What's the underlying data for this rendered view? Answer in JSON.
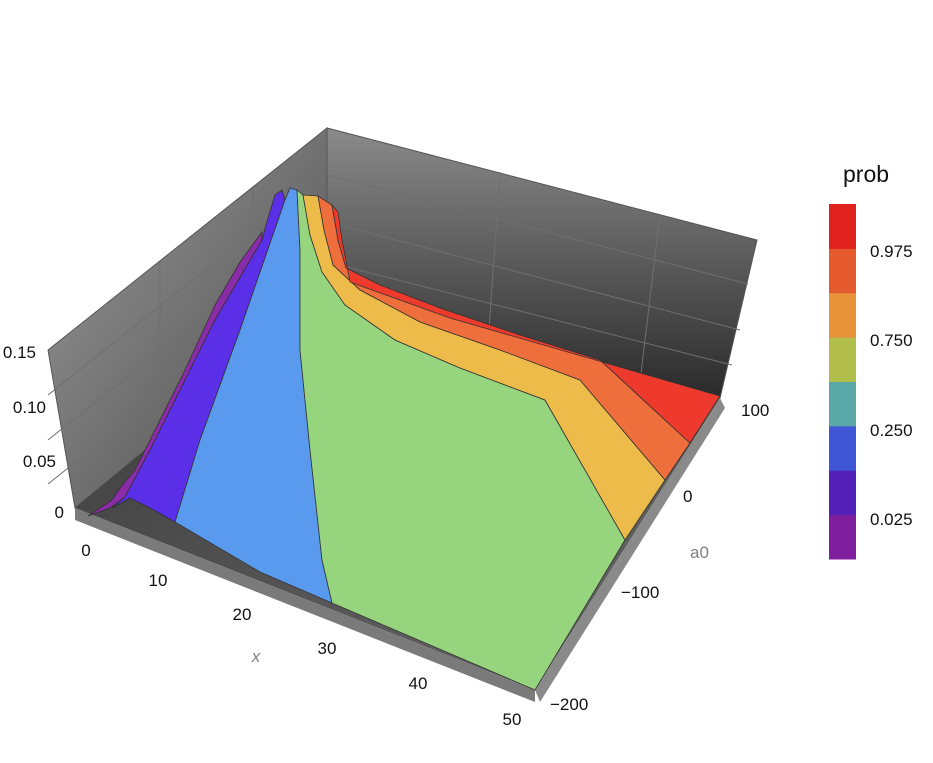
{
  "chart_data": {
    "type": "surface3d",
    "title": "",
    "axes": {
      "x": {
        "label": "x",
        "range": [
          0,
          50
        ],
        "ticks": [
          "0",
          "10",
          "20",
          "30",
          "40",
          "50"
        ]
      },
      "y": {
        "label": "a0",
        "range": [
          -200,
          100
        ],
        "ticks": [
          "−200",
          "−100",
          "0",
          "100"
        ]
      },
      "z": {
        "label": "",
        "range": [
          0,
          0.15
        ],
        "ticks": [
          "0",
          "0.05",
          "0.10",
          "0.15"
        ]
      }
    },
    "legend": {
      "title": "prob",
      "placement": "right",
      "bands": [
        {
          "color": "#7E1E9C"
        },
        {
          "color": "#5420B8"
        },
        {
          "color": "#3F56D6"
        },
        {
          "color": "#5BA8A8"
        },
        {
          "color": "#B2BE4A"
        },
        {
          "color": "#E8923A"
        },
        {
          "color": "#E55A2D"
        },
        {
          "color": "#E0221F"
        }
      ],
      "tick_labels": [
        "0.025",
        "0.250",
        "0.750",
        "0.975"
      ]
    },
    "bands_on_surface": [
      {
        "name": "band-0-0.025",
        "color": "#8A2BA8"
      },
      {
        "name": "band-0.025-0.25",
        "color": "#5B2EE8"
      },
      {
        "name": "band-0.25-0.5",
        "color": "#5A9AEE"
      },
      {
        "name": "band-0.5-0.75",
        "color": "#96D47E"
      },
      {
        "name": "band-0.75-0.975",
        "color": "#EDBB4A"
      },
      {
        "name": "band-0.975-1",
        "color": "#EE6E3C"
      },
      {
        "name": "band-top",
        "color": "#EE3A2C"
      }
    ],
    "peak": {
      "x": 14,
      "a0": 100,
      "z": 0.14
    }
  }
}
